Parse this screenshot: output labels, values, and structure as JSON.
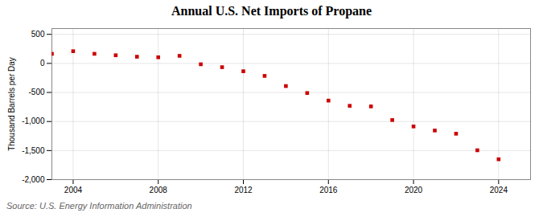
{
  "chart_data": {
    "type": "scatter",
    "title": "Annual U.S. Net Imports of Propane",
    "ylabel": "Thousand Barrels per Day",
    "annotation": "Source: U.S. Energy Information Administration",
    "x": [
      2003,
      2004,
      2005,
      2006,
      2007,
      2008,
      2009,
      2010,
      2011,
      2012,
      2013,
      2014,
      2015,
      2016,
      2017,
      2018,
      2019,
      2020,
      2021,
      2022,
      2023,
      2024
    ],
    "values": [
      165,
      210,
      165,
      140,
      115,
      105,
      130,
      -15,
      -65,
      -135,
      -215,
      -390,
      -510,
      -640,
      -730,
      -740,
      -975,
      -1085,
      -1155,
      -1210,
      -1495,
      -1650
    ],
    "color": "#cc0000",
    "marker": "square",
    "xlim": [
      2003,
      2025.5
    ],
    "xticks": [
      2004,
      2008,
      2012,
      2016,
      2020,
      2024
    ],
    "ylim": [
      -2000,
      600
    ],
    "yticks": [
      {
        "value": -2000,
        "label": "-2,000"
      },
      {
        "value": -1500,
        "label": "-1,500"
      },
      {
        "value": -1000,
        "label": "-1,000"
      },
      -500,
      0,
      500
    ],
    "grid": true
  }
}
